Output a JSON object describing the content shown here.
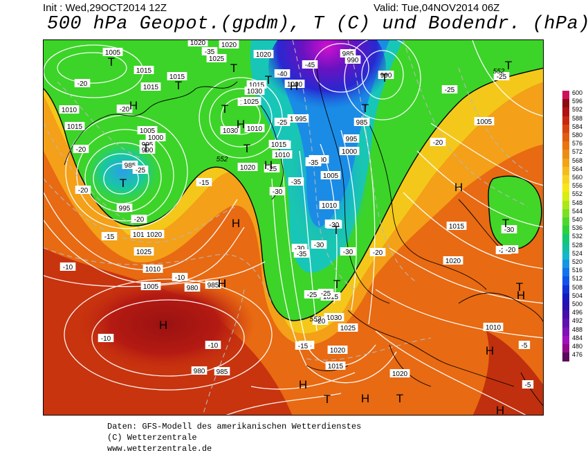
{
  "header": {
    "init": "Init : Wed,29OCT2014 12Z",
    "valid": "Valid: Tue,04NOV2014 06Z",
    "title": "500 hPa Geopot.(gpdm), T (C) und Bodendr. (hPa)"
  },
  "legend": {
    "values": [
      "600",
      "596",
      "592",
      "588",
      "584",
      "580",
      "576",
      "572",
      "568",
      "564",
      "560",
      "556",
      "552",
      "548",
      "544",
      "540",
      "536",
      "532",
      "528",
      "524",
      "520",
      "516",
      "512",
      "508",
      "504",
      "500",
      "496",
      "492",
      "488",
      "484",
      "480",
      "476"
    ],
    "colors": [
      "#d0105a",
      "#8e0a12",
      "#b01212",
      "#c82810",
      "#d84410",
      "#e25c10",
      "#ea7410",
      "#ee8c12",
      "#f2a416",
      "#f6bc1a",
      "#f8d41e",
      "#f6e816",
      "#d8ee10",
      "#aae816",
      "#7ce020",
      "#4cd82c",
      "#2ad23c",
      "#14c870",
      "#12c09c",
      "#14b8c8",
      "#1496e4",
      "#1274ec",
      "#1052ec",
      "#1030d8",
      "#1818c0",
      "#2a10b0",
      "#4410a8",
      "#6010b0",
      "#8010b8",
      "#a010c0",
      "#900a8a",
      "#5a0a5a"
    ]
  },
  "map": {
    "isobars": [
      "1005",
      "1015",
      "1015",
      "1010",
      "1015",
      "1005",
      "1000",
      "995",
      "990",
      "985",
      "995",
      "1020",
      "1020",
      "1015",
      "1030",
      "1025",
      "1015",
      "1010",
      "1030",
      "1025",
      "1020",
      "1025",
      "1020",
      "1010",
      "1005",
      "995",
      "1000",
      "1000",
      "1015",
      "1010",
      "1015",
      "1020",
      "1025",
      "1010",
      "1005",
      "980",
      "985",
      "985",
      "980",
      "985",
      "990",
      "990",
      "985",
      "995",
      "1000",
      "1005",
      "1010",
      "1015",
      "1030",
      "1025",
      "1020",
      "1015",
      "1020",
      "1005",
      "1015",
      "1020",
      "1010"
    ],
    "temperatures": [
      "-20",
      "-20",
      "-20",
      "-25",
      "-20",
      "-20",
      "-15",
      "-20",
      "-15",
      "-10",
      "-10",
      "-10",
      "-10",
      "-5",
      "-35",
      "-40",
      "-45",
      "-35",
      "-30",
      "-30",
      "-25",
      "-25",
      "-35",
      "-35",
      "-30",
      "-35",
      "-30",
      "-30",
      "-30",
      "-25",
      "-25",
      "-25",
      "-20",
      "-20",
      "-20",
      "-30",
      "-25",
      "-20",
      "-15",
      "-15",
      "-5",
      "-25"
    ],
    "geopotential": [
      "552",
      "552",
      "552"
    ],
    "lows": [
      "T",
      "T",
      "T",
      "T",
      "T",
      "T",
      "T",
      "T",
      "T",
      "T",
      "T",
      "T",
      "T",
      "T",
      "T",
      "T",
      "T"
    ],
    "highs": [
      "H",
      "H",
      "H",
      "H",
      "H",
      "H",
      "H",
      "H",
      "H",
      "H",
      "H",
      "H",
      "H",
      "H"
    ]
  },
  "footer": {
    "line1": "Daten: GFS-Modell des amerikanischen Wetterdienstes",
    "line2": "(C) Wetterzentrale",
    "line3": "www.wetterzentrale.de"
  }
}
